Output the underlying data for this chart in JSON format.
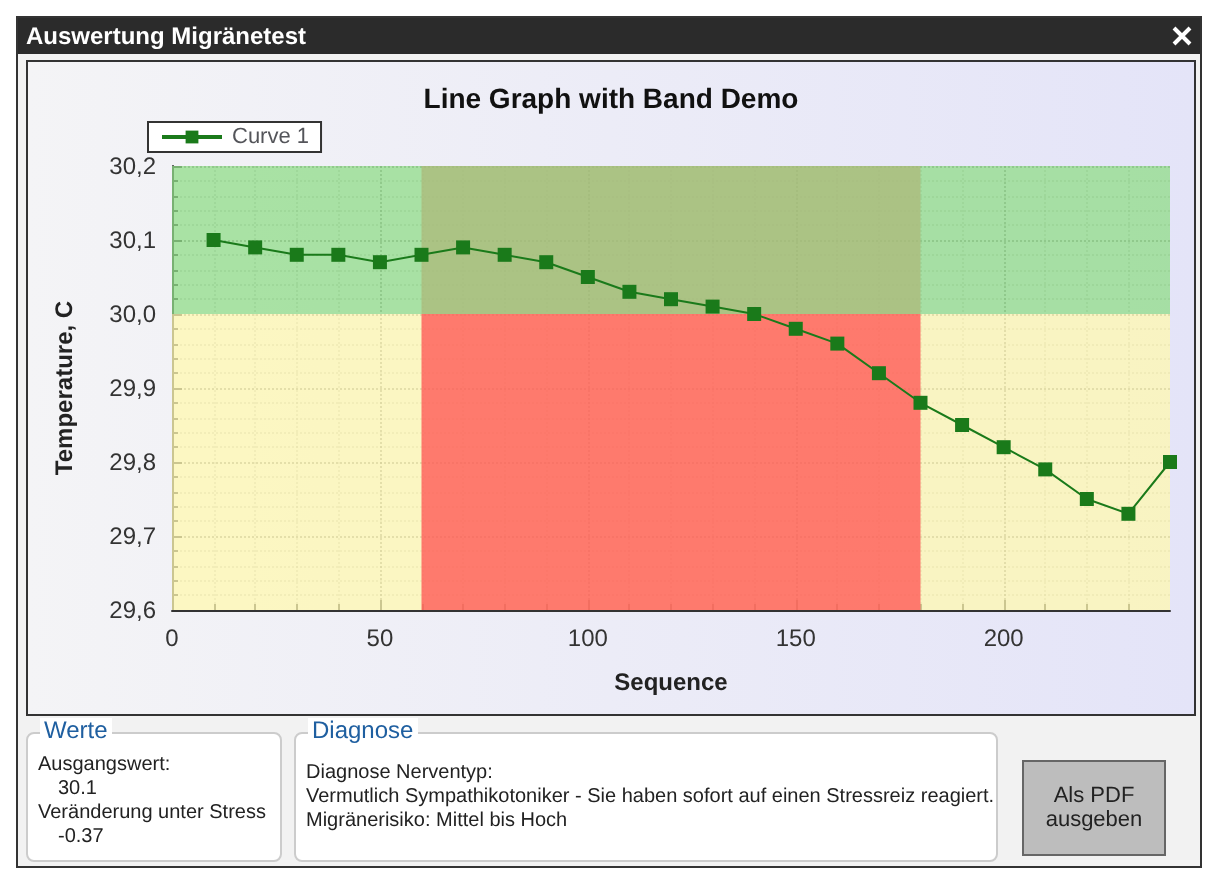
{
  "chart_data": {
    "type": "line",
    "title": "Line Graph with Band Demo",
    "xlabel": "Sequence",
    "ylabel": "Temperature, C",
    "x": [
      10,
      20,
      30,
      40,
      50,
      60,
      70,
      80,
      90,
      100,
      110,
      120,
      130,
      140,
      150,
      160,
      170,
      180,
      190,
      200,
      210,
      220,
      230,
      240
    ],
    "series": [
      {
        "name": "Curve 1",
        "color": "#1a7a1a",
        "values": [
          30.1,
          30.09,
          30.08,
          30.08,
          30.07,
          30.08,
          30.09,
          30.08,
          30.07,
          30.05,
          30.03,
          30.02,
          30.01,
          30.0,
          29.98,
          29.96,
          29.92,
          29.88,
          29.85,
          29.82,
          29.79,
          29.75,
          29.73,
          29.8
        ]
      }
    ],
    "xlim": [
      0,
      240
    ],
    "xticks": [
      0,
      50,
      100,
      150,
      200
    ],
    "ylim": [
      29.6,
      30.2
    ],
    "yticks": [
      {
        "value": 29.6,
        "label": "29,6"
      },
      {
        "value": 29.7,
        "label": "29,7"
      },
      {
        "value": 29.8,
        "label": "29,8"
      },
      {
        "value": 29.9,
        "label": "29,9"
      },
      {
        "value": 30.0,
        "label": "30,0"
      },
      {
        "value": 30.1,
        "label": "30,1"
      },
      {
        "value": 30.2,
        "label": "30,2"
      }
    ],
    "bands": [
      {
        "axis": "y",
        "from": 29.6,
        "to": 30.0,
        "color": "#fff8b0"
      },
      {
        "axis": "x",
        "from": 60,
        "to": 180,
        "color": "#ff5050"
      },
      {
        "axis": "y",
        "from": 30.0,
        "to": 30.2,
        "color": "#90dc88"
      }
    ],
    "grid": true,
    "legend": "top left",
    "marker": "square",
    "line_style": "solid",
    "annotations": [
      "Auswertung Migränetest",
      "Werte",
      "Ausgangswert:",
      "30.1",
      "Veränderung unter Stress",
      "-0.37",
      "Diagnose",
      "Diagnose Nerventyp:",
      "Vermutlich Sympathikotoniker - Sie haben sofort auf einen Stressreiz reagiert.",
      "Migränerisiko: Mittel bis Hoch",
      "Als PDF ausgeben"
    ]
  }
}
